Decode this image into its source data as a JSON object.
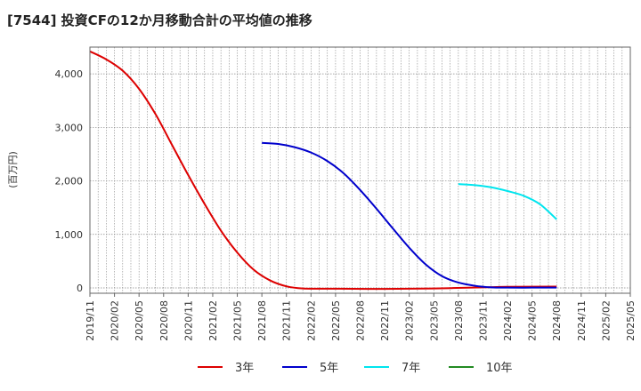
{
  "title": "[7544]  投資CFの12か月移動合計の平均値の推移",
  "chart_data": {
    "type": "line",
    "title": "[7544]  投資CFの12か月移動合計の平均値の推移",
    "ylabel": "(百万円)",
    "ylim": [
      -100,
      4500
    ],
    "yticks": [
      0,
      1000,
      2000,
      3000,
      4000
    ],
    "ytick_labels": [
      "0",
      "1,000",
      "2,000",
      "3,000",
      "4,000"
    ],
    "xlim": [
      "2019-11",
      "2025-05"
    ],
    "xtick_labels": [
      "2019/11",
      "2020/02",
      "2020/05",
      "2020/08",
      "2020/11",
      "2021/02",
      "2021/05",
      "2021/08",
      "2021/11",
      "2022/02",
      "2022/05",
      "2022/08",
      "2022/11",
      "2023/02",
      "2023/05",
      "2023/08",
      "2023/11",
      "2024/02",
      "2024/05",
      "2024/08",
      "2024/11",
      "2025/02",
      "2025/05"
    ],
    "grid": "dotted",
    "legend_position": "bottom",
    "series": [
      {
        "name": "3年",
        "color": "#dd0000",
        "points": [
          [
            "2019-11",
            4420
          ],
          [
            "2020-01",
            4270
          ],
          [
            "2020-03",
            4060
          ],
          [
            "2020-05",
            3720
          ],
          [
            "2020-07",
            3250
          ],
          [
            "2020-09",
            2680
          ],
          [
            "2020-11",
            2110
          ],
          [
            "2021-01",
            1570
          ],
          [
            "2021-03",
            1070
          ],
          [
            "2021-05",
            660
          ],
          [
            "2021-07",
            340
          ],
          [
            "2021-09",
            140
          ],
          [
            "2021-11",
            30
          ],
          [
            "2022-01",
            -10
          ],
          [
            "2022-05",
            -15
          ],
          [
            "2022-11",
            -20
          ],
          [
            "2023-05",
            -10
          ],
          [
            "2023-11",
            10
          ],
          [
            "2024-02",
            20
          ],
          [
            "2024-08",
            25
          ]
        ]
      },
      {
        "name": "5年",
        "color": "#0000cc",
        "points": [
          [
            "2021-08",
            2710
          ],
          [
            "2021-10",
            2690
          ],
          [
            "2021-12",
            2630
          ],
          [
            "2022-02",
            2530
          ],
          [
            "2022-04",
            2370
          ],
          [
            "2022-06",
            2140
          ],
          [
            "2022-08",
            1830
          ],
          [
            "2022-10",
            1480
          ],
          [
            "2022-12",
            1110
          ],
          [
            "2023-02",
            750
          ],
          [
            "2023-04",
            440
          ],
          [
            "2023-06",
            220
          ],
          [
            "2023-08",
            100
          ],
          [
            "2023-10",
            40
          ],
          [
            "2023-12",
            10
          ],
          [
            "2024-02",
            5
          ],
          [
            "2024-05",
            5
          ],
          [
            "2024-08",
            5
          ]
        ]
      },
      {
        "name": "7年",
        "color": "#00e5ee",
        "points": [
          [
            "2023-08",
            1940
          ],
          [
            "2023-10",
            1920
          ],
          [
            "2023-12",
            1880
          ],
          [
            "2024-02",
            1810
          ],
          [
            "2024-04",
            1720
          ],
          [
            "2024-06",
            1560
          ],
          [
            "2024-08",
            1280
          ]
        ]
      },
      {
        "name": "10年",
        "color": "#228b22",
        "points": []
      }
    ]
  }
}
